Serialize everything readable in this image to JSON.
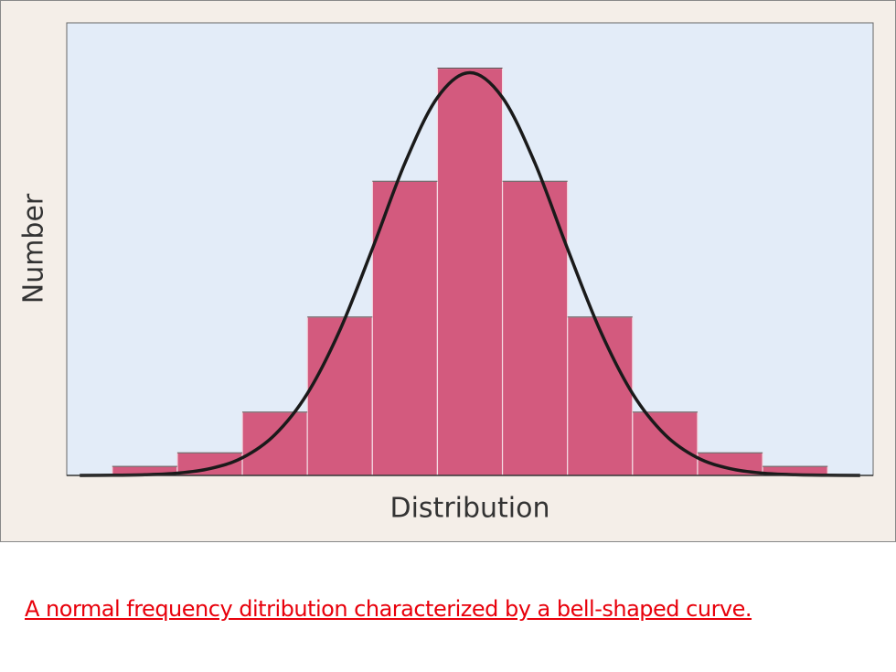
{
  "chart_data": {
    "type": "histogram",
    "x_label": "Distribution",
    "y_label": "Number",
    "bins": [
      -5.5,
      -4.5,
      -3.5,
      -2.5,
      -1.5,
      -0.5,
      0.5,
      1.5,
      2.5,
      3.5,
      4.5,
      5.5
    ],
    "values": [
      2,
      5,
      14,
      35,
      65,
      90,
      65,
      35,
      14,
      5,
      2
    ],
    "color": "#d35a7e",
    "curve": {
      "color": "#1a1a1a",
      "x": [
        -6,
        -5.5,
        -5,
        -4.5,
        -4,
        -3.5,
        -3,
        -2.5,
        -2,
        -1.5,
        -1,
        -0.5,
        0,
        0.5,
        1,
        1.5,
        2,
        2.5,
        3,
        3.5,
        4,
        4.5,
        5,
        5.5,
        6
      ],
      "values": [
        0.01,
        0.04,
        0.15,
        0.5,
        1.5,
        3.9,
        9,
        18.1,
        32.1,
        50.1,
        69,
        83.5,
        89,
        83.5,
        69,
        50.1,
        32.1,
        18.1,
        9,
        3.9,
        1.5,
        0.5,
        0.15,
        0.04,
        0.01
      ]
    },
    "xlim": [
      -6.2,
      6.2
    ],
    "ylim": [
      0,
      100
    ]
  },
  "caption": "A normal frequency ditribution characterized by a bell-shaped curve."
}
